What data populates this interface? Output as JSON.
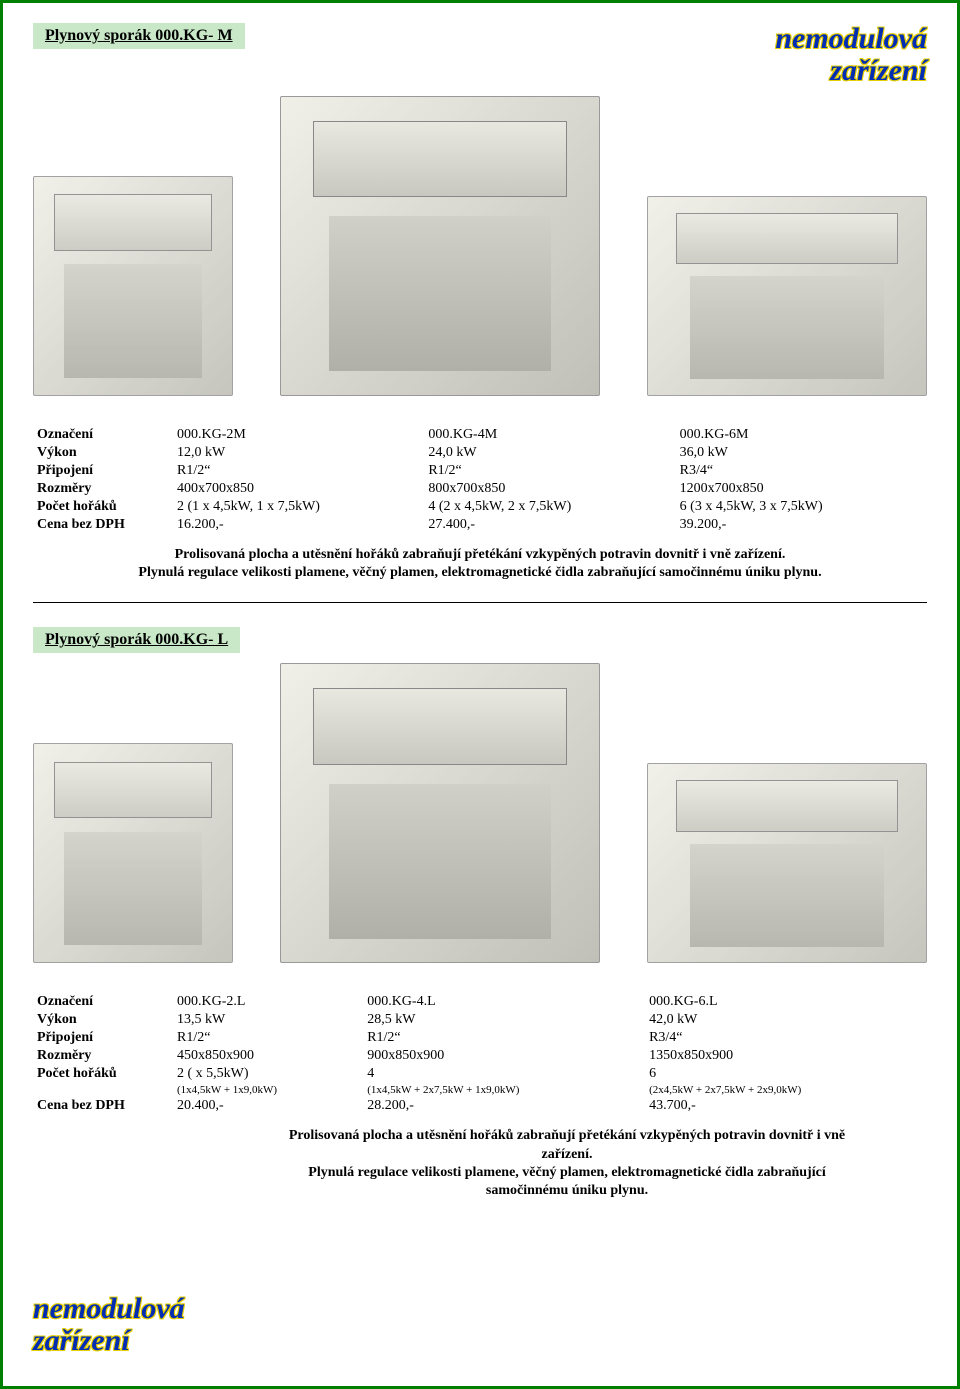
{
  "brand": {
    "line1": "nemodulová",
    "line2": "zařízení",
    "color": "#002db3",
    "outline": "#e6cf00"
  },
  "section1": {
    "title": "Plynový sporák 000.KG- M",
    "rows": {
      "oznaceni": {
        "label": "Označení",
        "c1": "000.KG-2M",
        "c2": "000.KG-4M",
        "c3": "000.KG-6M"
      },
      "vykon": {
        "label": "Výkon",
        "c1": "12,0 kW",
        "c2": "24,0 kW",
        "c3": "36,0 kW"
      },
      "pripojeni": {
        "label": "Připojení",
        "c1": "R1/2“",
        "c2": "R1/2“",
        "c3": "R3/4“"
      },
      "rozmery": {
        "label": "Rozměry",
        "c1": "400x700x850",
        "c2": "800x700x850",
        "c3": "1200x700x850"
      },
      "horaku": {
        "label": "Počet hořáků",
        "c1": "2 (1 x 4,5kW, 1 x 7,5kW)",
        "c2": "4 (2 x 4,5kW, 2 x 7,5kW)",
        "c3": "6 (3 x 4,5kW, 3 x 7,5kW)"
      },
      "cena": {
        "label": "Cena bez DPH",
        "c1": "16.200,-",
        "c2": "27.400,-",
        "c3": "39.200,-"
      }
    },
    "desc1": "Prolisovaná plocha a utěsnění hořáků zabraňují přetékání vzkypěných potravin dovnitř i vně zařízení.",
    "desc2": "Plynulá regulace velikosti plamene, věčný plamen, elektromagnetické čidla zabraňující samočinnému úniku plynu."
  },
  "section2": {
    "title": "Plynový sporák 000.KG- L",
    "rows": {
      "oznaceni": {
        "label": "Označení",
        "c1": "000.KG-2.L",
        "c2": "000.KG-4.L",
        "c3": "000.KG-6.L"
      },
      "vykon": {
        "label": "Výkon",
        "c1": "13,5 kW",
        "c2": "28,5 kW",
        "c3": "42,0 kW"
      },
      "pripojeni": {
        "label": "Připojení",
        "c1": "R1/2“",
        "c2": "R1/2“",
        "c3": "R3/4“"
      },
      "rozmery": {
        "label": "Rozměry",
        "c1": "450x850x900",
        "c2": "900x850x900",
        "c3": "1350x850x900"
      },
      "horaku": {
        "label": "Počet hořáků",
        "c1": "2 ( x 5,5kW)",
        "c2": "4",
        "c3": "6"
      },
      "horaku_sub": {
        "c1": "(1x4,5kW + 1x9,0kW)",
        "c2": "(1x4,5kW + 2x7,5kW + 1x9,0kW)",
        "c3": "(2x4,5kW + 2x7,5kW + 2x9,0kW)"
      },
      "cena": {
        "label": "Cena bez DPH",
        "c1": "20.400,-",
        "c2": "28.200,-",
        "c3": "43.700,-"
      }
    },
    "desc1": "Prolisovaná plocha a utěsnění hořáků zabraňují přetékání vzkypěných potravin dovnitř i vně zařízení.",
    "desc2": "Plynulá regulace velikosti plamene, věčný plamen, elektromagnetické čidla zabraňující samočinnému úniku plynu."
  },
  "colors": {
    "border": "#008000",
    "title_bg": "#c8e8c8"
  }
}
